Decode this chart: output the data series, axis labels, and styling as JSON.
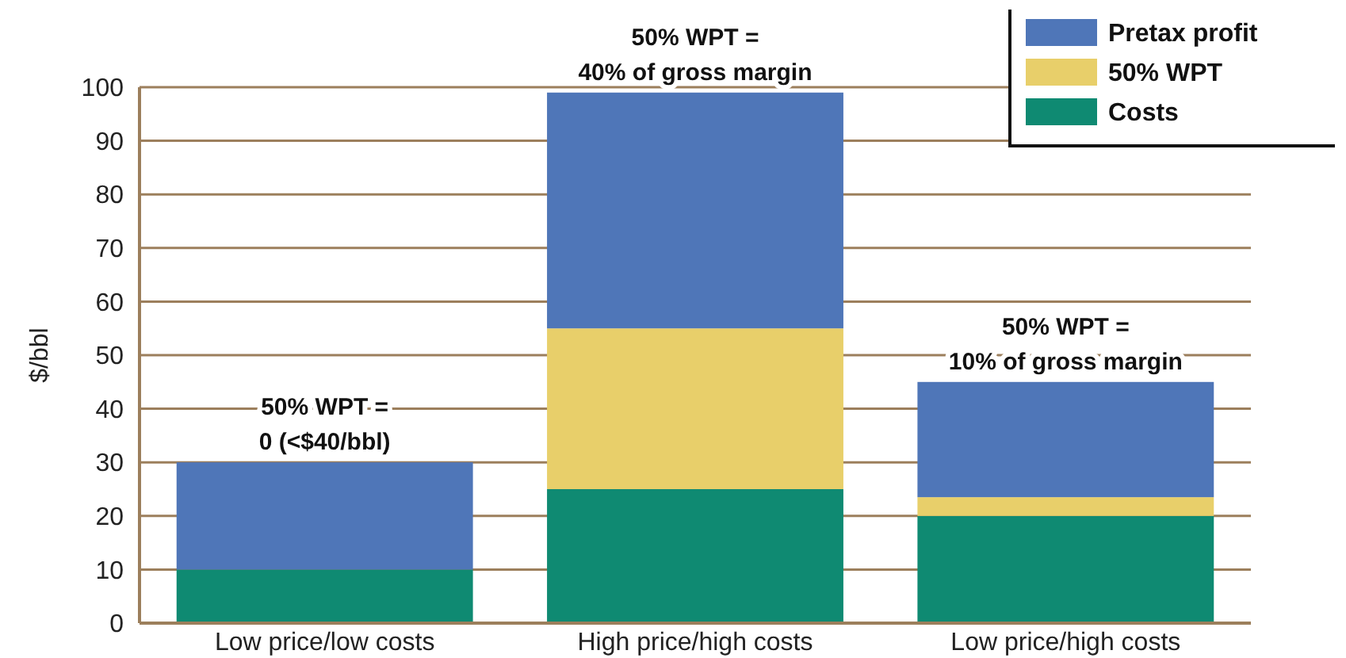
{
  "chart_data": {
    "type": "bar",
    "stacked": true,
    "ylabel": "$/bbl",
    "categories": [
      "Low price/low costs",
      "High price/high costs",
      "Low price/high costs"
    ],
    "series": [
      {
        "name": "Costs",
        "color": "#0f8a72",
        "values": [
          10,
          25,
          20
        ]
      },
      {
        "name": "50% WPT",
        "color": "#e8cf6a",
        "values": [
          0,
          30,
          3.5
        ]
      },
      {
        "name": "Pretax profit",
        "color": "#4f76b8",
        "values": [
          20,
          44,
          21.5
        ]
      }
    ],
    "ylim": [
      0,
      100
    ],
    "yticks": [
      0,
      10,
      20,
      30,
      40,
      50,
      60,
      70,
      80,
      90,
      100
    ],
    "grid": "y",
    "legend": "top right",
    "annotations": [
      {
        "text": "50% WPT =\n0 (<$40/bbl)",
        "x": "Low price/low costs",
        "y": 30
      },
      {
        "text": "50% WPT =\n40% of gross margin",
        "x": "High price/high costs",
        "y": 99
      },
      {
        "text": "50% WPT =\n10% of gross margin",
        "x": "Low price/high costs",
        "y": 45
      }
    ]
  }
}
